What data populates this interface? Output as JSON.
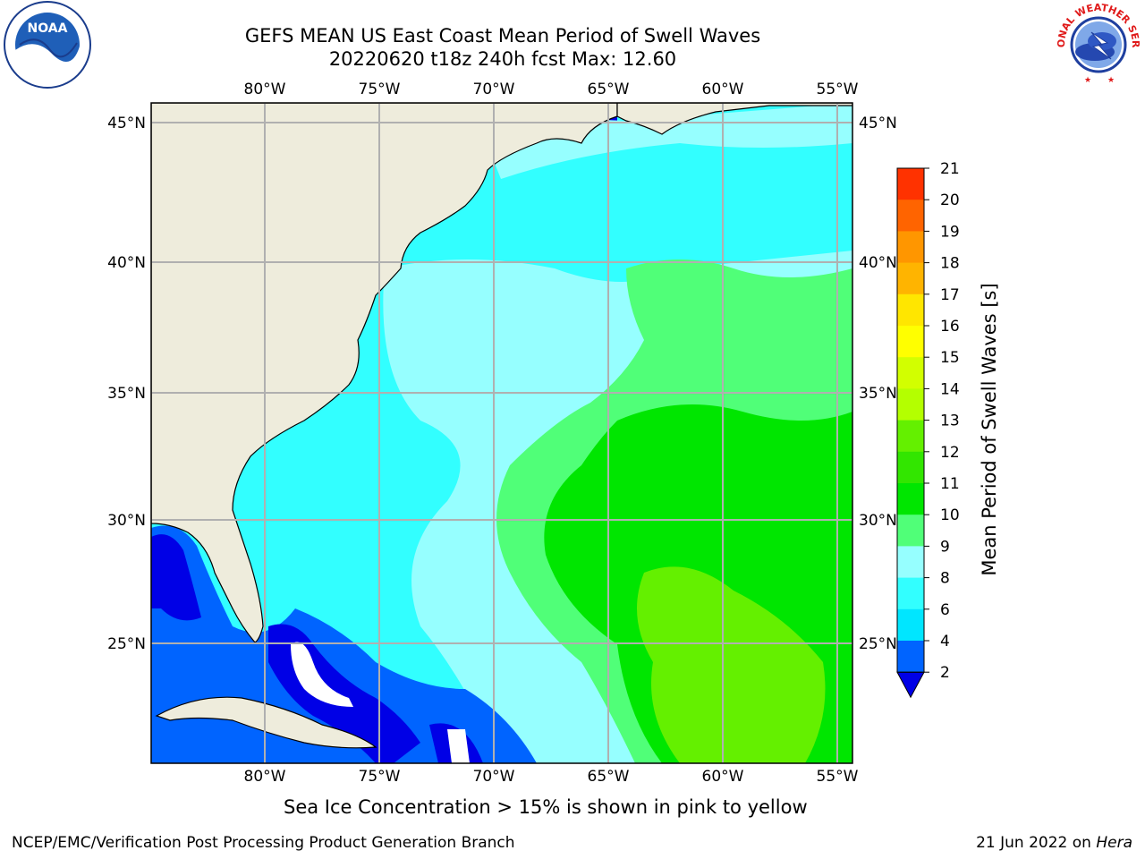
{
  "header": {
    "title_line1": "GEFS MEAN US East Coast Mean Period of Swell Waves",
    "title_line2": "20220620 t18z 240h fcst   Max: 12.60"
  },
  "logos": {
    "left": "noaa-logo",
    "right": "national-weather-service-logo",
    "left_text": "NOAA",
    "right_text": "NATIONAL WEATHER SERVICE"
  },
  "map": {
    "lon_labels": [
      "80°W",
      "75°W",
      "70°W",
      "65°W",
      "60°W",
      "55°W"
    ],
    "lat_labels": [
      "45°N",
      "40°N",
      "35°N",
      "30°N",
      "25°N"
    ],
    "lon_range": [
      -85,
      -54
    ],
    "lat_range": [
      20.3,
      45.8
    ],
    "land_color": "#eeecdc",
    "grid_color": "#b0b0b0"
  },
  "colorbar": {
    "label": "Mean Period of Swell Waves [s]",
    "levels": [
      "2",
      "4",
      "6",
      "8",
      "9",
      "10",
      "11",
      "12",
      "13",
      "14",
      "15",
      "16",
      "17",
      "18",
      "19",
      "20",
      "21"
    ],
    "colors": [
      "#0064ff",
      "#00e6ff",
      "#32ffff",
      "#96ffff",
      "#50ff78",
      "#00e600",
      "#32e600",
      "#64f000",
      "#b4ff00",
      "#d2ff00",
      "#ffff00",
      "#ffe600",
      "#ffb400",
      "#ff9600",
      "#ff6400",
      "#ff3200"
    ],
    "under_color": "#0000e6"
  },
  "footer": {
    "note": "Sea Ice Concentration > 15% is shown in pink to yellow",
    "left": "NCEP/EMC/Verification Post Processing Product Generation Branch",
    "right_prefix": "21 Jun 2022 on ",
    "right_machine": "Hera"
  }
}
